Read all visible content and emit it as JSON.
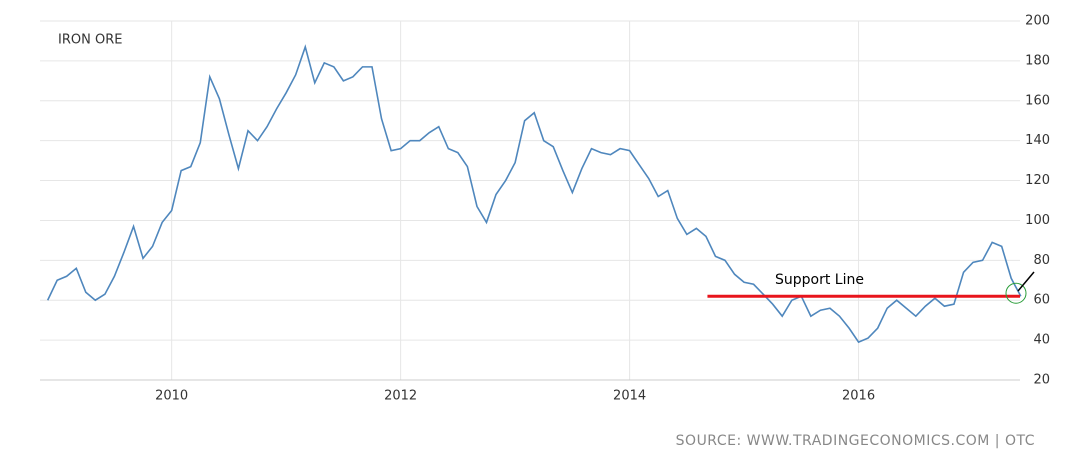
{
  "chart_data": {
    "type": "line",
    "title": "IRON ORE",
    "source": "SOURCE: WWW.TRADINGECONOMICS.COM | OTC",
    "x": [
      2008.917,
      2009.0,
      2009.083,
      2009.167,
      2009.25,
      2009.333,
      2009.417,
      2009.5,
      2009.583,
      2009.667,
      2009.75,
      2009.833,
      2009.917,
      2010.0,
      2010.083,
      2010.167,
      2010.25,
      2010.333,
      2010.417,
      2010.5,
      2010.583,
      2010.667,
      2010.75,
      2010.833,
      2010.917,
      2011.0,
      2011.083,
      2011.167,
      2011.25,
      2011.333,
      2011.417,
      2011.5,
      2011.583,
      2011.667,
      2011.75,
      2011.833,
      2011.917,
      2012.0,
      2012.083,
      2012.167,
      2012.25,
      2012.333,
      2012.417,
      2012.5,
      2012.583,
      2012.667,
      2012.75,
      2012.833,
      2012.917,
      2013.0,
      2013.083,
      2013.167,
      2013.25,
      2013.333,
      2013.417,
      2013.5,
      2013.583,
      2013.667,
      2013.75,
      2013.833,
      2013.917,
      2014.0,
      2014.083,
      2014.167,
      2014.25,
      2014.333,
      2014.417,
      2014.5,
      2014.583,
      2014.667,
      2014.75,
      2014.833,
      2014.917,
      2015.0,
      2015.083,
      2015.167,
      2015.25,
      2015.333,
      2015.417,
      2015.5,
      2015.583,
      2015.667,
      2015.75,
      2015.833,
      2015.917,
      2016.0,
      2016.083,
      2016.167,
      2016.25,
      2016.333,
      2016.417,
      2016.5,
      2016.583,
      2016.667,
      2016.75,
      2016.833,
      2016.917,
      2017.0,
      2017.083,
      2017.167,
      2017.25,
      2017.333,
      2017.417
    ],
    "series": [
      {
        "name": "Iron Ore",
        "color": "#4f87bd",
        "values": [
          60,
          70,
          72,
          76,
          64,
          60,
          63,
          72,
          84,
          97,
          81,
          87,
          99,
          105,
          125,
          127,
          139,
          172,
          161,
          143,
          126,
          145,
          140,
          147,
          156,
          164,
          173,
          187,
          169,
          179,
          177,
          170,
          172,
          177,
          177,
          151,
          135,
          136,
          140,
          140,
          144,
          147,
          136,
          134,
          127,
          107,
          99,
          113,
          120,
          129,
          150,
          154,
          140,
          137,
          125,
          114,
          126,
          136,
          134,
          133,
          136,
          135,
          128,
          121,
          112,
          115,
          101,
          93,
          96,
          92,
          82,
          80,
          73,
          69,
          68,
          63,
          58,
          52,
          60,
          62,
          52,
          55,
          56,
          52,
          46,
          39,
          41,
          46,
          56,
          60,
          56,
          52,
          57,
          61,
          57,
          58,
          74,
          79,
          80,
          89,
          87,
          71,
          62
        ]
      }
    ],
    "xlim": [
      2008.85,
      2017.41
    ],
    "xticks": [
      2010,
      2012,
      2014,
      2016
    ],
    "ylim": [
      20,
      200
    ],
    "yticks": [
      20,
      40,
      60,
      80,
      100,
      120,
      140,
      160,
      180,
      200
    ],
    "grid": true,
    "support_line": {
      "label": "Support Line",
      "value": 62,
      "x_start": 2014.68,
      "color": "#e8141c"
    }
  }
}
